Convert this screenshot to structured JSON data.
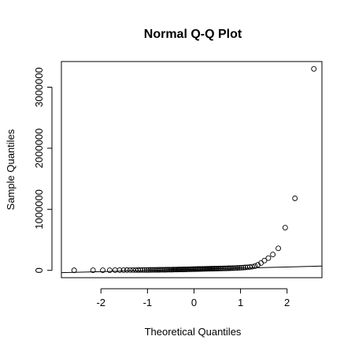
{
  "chart_data": {
    "type": "scatter",
    "title": "Normal Q-Q Plot",
    "xlabel": "Theoretical Quantiles",
    "ylabel": "Sample Quantiles",
    "xlim": [
      -2.85,
      2.75
    ],
    "ylim": [
      -120000,
      3420000
    ],
    "x_ticks": [
      -2,
      -1,
      0,
      1,
      2
    ],
    "x_tick_labels": [
      "-2",
      "-1",
      "0",
      "1",
      "2"
    ],
    "y_ticks": [
      0,
      1000000,
      2000000,
      3000000
    ],
    "y_tick_labels": [
      "0",
      "1000000",
      "2000000",
      "3000000"
    ],
    "grid": false,
    "reference_line": {
      "x": [
        -2.85,
        2.75
      ],
      "y": [
        -38000,
        70000
      ]
    },
    "series": [
      {
        "x": [
          -2.576,
          -2.17,
          -1.96,
          -1.812,
          -1.695,
          -1.598,
          -1.514,
          -1.44,
          -1.372,
          -1.311,
          -1.254,
          -1.2,
          -1.15,
          -1.103,
          -1.058,
          -1.015,
          -0.974,
          -0.935,
          -0.896,
          -0.86,
          -0.824,
          -0.789,
          -0.755,
          -0.722,
          -0.69,
          -0.659,
          -0.628,
          -0.598,
          -0.568,
          -0.539,
          -0.51,
          -0.482,
          -0.454,
          -0.426,
          -0.399,
          -0.372,
          -0.345,
          -0.319,
          -0.292,
          -0.266,
          -0.24,
          -0.215,
          -0.189,
          -0.164,
          -0.138,
          -0.113,
          -0.088,
          -0.063,
          -0.038,
          -0.013,
          0.013,
          0.038,
          0.063,
          0.088,
          0.113,
          0.138,
          0.164,
          0.189,
          0.215,
          0.24,
          0.266,
          0.292,
          0.319,
          0.345,
          0.372,
          0.399,
          0.426,
          0.454,
          0.482,
          0.51,
          0.539,
          0.568,
          0.598,
          0.628,
          0.659,
          0.69,
          0.722,
          0.755,
          0.789,
          0.824,
          0.86,
          0.896,
          0.935,
          0.974,
          1.015,
          1.058,
          1.103,
          1.15,
          1.2,
          1.254,
          1.311,
          1.372,
          1.44,
          1.514,
          1.598,
          1.695,
          1.812,
          1.96,
          2.17,
          2.576
        ],
        "y": [
          1000,
          1500,
          2000,
          2500,
          3000,
          3500,
          4000,
          4500,
          5000,
          5300,
          5600,
          5900,
          6200,
          6500,
          6800,
          7100,
          7400,
          7700,
          8000,
          8300,
          8600,
          8900,
          9200,
          9500,
          9800,
          10100,
          10400,
          10700,
          11000,
          11300,
          11600,
          12000,
          12400,
          12800,
          13200,
          13600,
          14000,
          14400,
          14800,
          15200,
          15600,
          16000,
          16500,
          17000,
          17500,
          18000,
          18500,
          19000,
          19500,
          20000,
          20500,
          21000,
          21500,
          22000,
          22500,
          23000,
          23500,
          24000,
          24500,
          25000,
          25500,
          26000,
          26500,
          27000,
          27500,
          28000,
          28500,
          29000,
          29500,
          30000,
          30500,
          31000,
          31500,
          32000,
          32500,
          33000,
          34000,
          35000,
          36000,
          37000,
          38000,
          39000,
          40000,
          42000,
          44000,
          46000,
          48000,
          50000,
          55000,
          60000,
          70000,
          90000,
          120000,
          160000,
          200000,
          260000,
          360000,
          700000,
          1180000,
          3300000
        ]
      }
    ]
  }
}
